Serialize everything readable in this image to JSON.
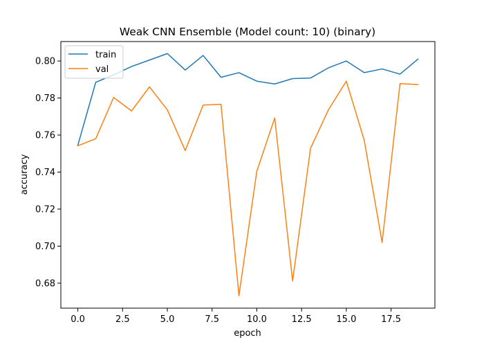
{
  "chart_data": {
    "type": "line",
    "title": "Weak CNN Ensemble (Model count: 10) (binary)",
    "xlabel": "epoch",
    "ylabel": "accuracy",
    "x": [
      0,
      1,
      2,
      3,
      4,
      5,
      6,
      7,
      8,
      9,
      10,
      11,
      12,
      13,
      14,
      15,
      16,
      17,
      18,
      19
    ],
    "xlim": [
      -0.95,
      19.95
    ],
    "ylim": [
      0.6665,
      0.8105
    ],
    "xticks": [
      0.0,
      2.5,
      5.0,
      7.5,
      10.0,
      12.5,
      15.0,
      17.5
    ],
    "xtick_labels": [
      "0.0",
      "2.5",
      "5.0",
      "7.5",
      "10.0",
      "12.5",
      "15.0",
      "17.5"
    ],
    "yticks": [
      0.68,
      0.7,
      0.72,
      0.74,
      0.76,
      0.78,
      0.8
    ],
    "ytick_labels": [
      "0.68",
      "0.70",
      "0.72",
      "0.74",
      "0.76",
      "0.78",
      "0.80"
    ],
    "grid": false,
    "legend_position": "top-left",
    "series": [
      {
        "name": "train",
        "color": "#1f77b4",
        "values": [
          0.7545,
          0.7885,
          0.7925,
          0.797,
          0.8005,
          0.804,
          0.7951,
          0.803,
          0.7912,
          0.7937,
          0.7891,
          0.7876,
          0.7905,
          0.7908,
          0.7963,
          0.8,
          0.7937,
          0.7957,
          0.7929,
          0.801
        ]
      },
      {
        "name": "val",
        "color": "#ff7f0e",
        "values": [
          0.7542,
          0.758,
          0.7803,
          0.773,
          0.786,
          0.7736,
          0.7516,
          0.7762,
          0.7766,
          0.6732,
          0.7405,
          0.7692,
          0.6812,
          0.7528,
          0.7736,
          0.7891,
          0.7572,
          0.702,
          0.7878,
          0.7873
        ]
      }
    ]
  }
}
